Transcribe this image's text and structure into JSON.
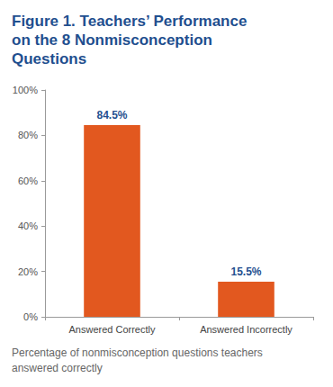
{
  "chart_data": {
    "type": "bar",
    "title": "Figure 1. Teachers’ Performance on the 8 Nonmisconception Questions",
    "caption": "Percentage of nonmisconception questions teachers answered correctly",
    "categories": [
      "Answered Correctly",
      "Answered Incorrectly"
    ],
    "values": [
      84.5,
      15.5
    ],
    "value_labels": [
      "84.5%",
      "15.5%"
    ],
    "color": "#e2581f",
    "ylim": [
      0,
      100
    ],
    "yticks": [
      {
        "value": 0,
        "label": "0%"
      },
      {
        "value": 20,
        "label": "20%"
      },
      {
        "value": 40,
        "label": "40%"
      },
      {
        "value": 60,
        "label": "60%"
      },
      {
        "value": 80,
        "label": "80%"
      },
      {
        "value": 100,
        "label": "100%"
      }
    ],
    "grid": false,
    "data_labels": true
  }
}
